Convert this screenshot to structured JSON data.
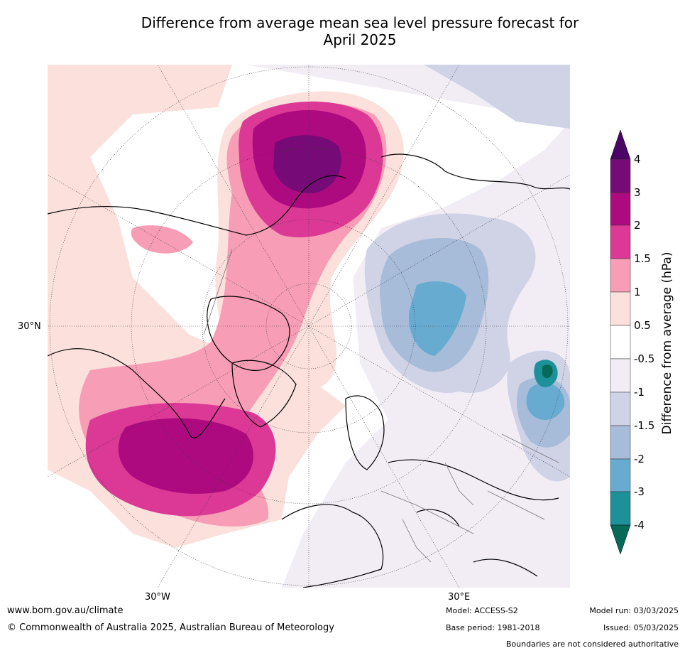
{
  "title": {
    "line1": "Difference from average mean sea level pressure forecast for",
    "line2": "April 2025"
  },
  "map": {
    "projection": "north polar stereographic",
    "lat_label": "30°N",
    "lon_labels": [
      "30°W",
      "30°E"
    ]
  },
  "colorbar": {
    "label": "Difference from average (hPa)",
    "ticks": [
      "4",
      "3",
      "2",
      "1.5",
      "1",
      "0.5",
      "-0.5",
      "-1",
      "-1.5",
      "-2",
      "-3",
      "-4"
    ],
    "colors": [
      "#4a0566",
      "#760a76",
      "#ae0a80",
      "#dc3996",
      "#f79db5",
      "#fbe0dc",
      "#ffffff",
      "#f2edf5",
      "#d0d2e6",
      "#a7bcd9",
      "#68abd0",
      "#1c9199",
      "#056a58"
    ]
  },
  "footer": {
    "url": "www.bom.gov.au/climate",
    "copyright": "© Commonwealth of Australia 2025, Australian Bureau of Meteorology",
    "model": "Model: ACCESS-S2",
    "base_period": "Base period: 1981-2018",
    "model_run": "Model run: 03/03/2025",
    "issued": "Issued: 05/03/2025",
    "disclaimer": "Boundaries are not considered authoritative"
  }
}
